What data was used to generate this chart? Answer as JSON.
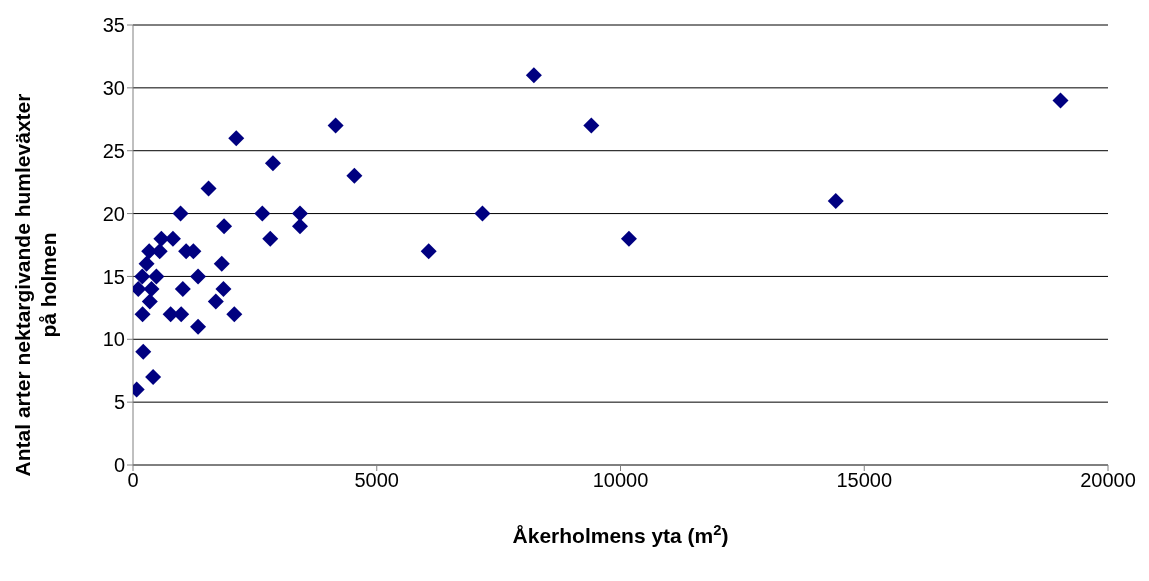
{
  "chart_data": {
    "type": "scatter",
    "xlabel": "Åkerholmens yta (m$^{2}$)",
    "ylabel": "Antal arter nektargivande humleväxter\npå holmen",
    "xlim": [
      0,
      20000
    ],
    "xticks": [
      0,
      5000,
      10000,
      15000,
      20000
    ],
    "ylim": [
      0,
      35
    ],
    "yticks": [
      0,
      5,
      10,
      15,
      20,
      25,
      30,
      35
    ],
    "grid": "y",
    "marker": "diamond",
    "legend": false,
    "series": [
      {
        "color": "#000080",
        "x": [
          2118,
          2870,
          1550,
          975,
          2653,
          3425,
          1868,
          3425,
          582,
          819,
          2816,
          332,
          548,
          1090,
          1239,
          278,
          1821,
          190,
          480,
          1334,
          108,
          379,
          1022,
          1855,
          345,
          1699,
          196,
          772,
          988,
          2078,
          1334,
          210,
          413,
          75,
          4156,
          4541,
          6065,
          7168,
          8223,
          9401,
          10173,
          14416,
          19025
        ],
        "values": [
          26,
          24,
          22,
          20,
          20,
          20,
          19,
          19,
          18,
          18,
          18,
          17,
          17,
          17,
          17,
          16,
          16,
          15,
          15,
          15,
          14,
          14,
          14,
          14,
          13,
          13,
          12,
          12,
          12,
          12,
          11,
          9,
          7,
          6,
          27,
          23,
          17,
          20,
          31,
          27,
          18,
          21,
          29
        ]
      }
    ]
  }
}
